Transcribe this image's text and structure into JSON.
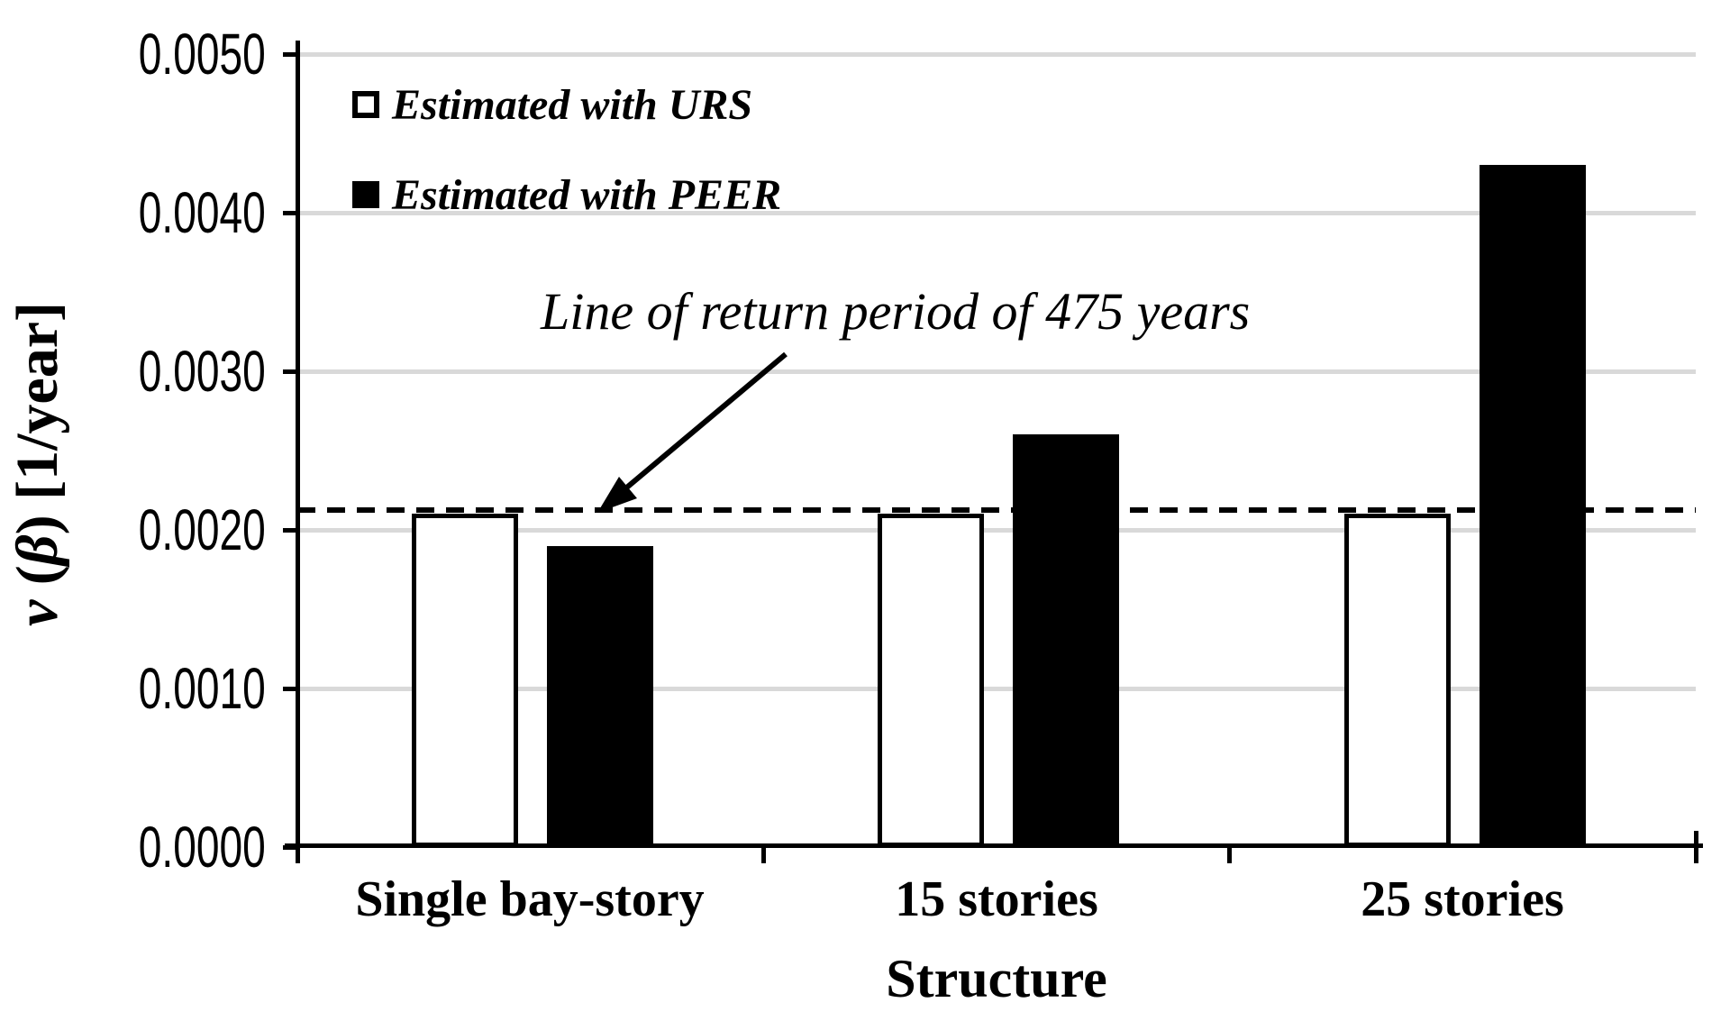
{
  "chart_data": {
    "type": "bar",
    "title": "",
    "xlabel": "Structure",
    "ylabel": "ν (β) [1/year]",
    "ylabel_parts": {
      "nu": "ν",
      "mid": " (",
      "beta": "β",
      "end": ") [1/year]"
    },
    "categories": [
      "Single bay-story",
      "15 stories",
      "25 stories"
    ],
    "series": [
      {
        "name": "Estimated with URS",
        "fill": "#ffffff",
        "outline": "#000000",
        "values": [
          0.0021,
          0.0021,
          0.0021
        ]
      },
      {
        "name": "Estimated with PEER",
        "fill": "#000000",
        "outline": "#000000",
        "values": [
          0.0019,
          0.0026,
          0.0043
        ]
      }
    ],
    "ylim": [
      0.0,
      0.005
    ],
    "ytick_step": 0.001,
    "ytick_labels": [
      "0.0000",
      "0.0010",
      "0.0020",
      "0.0030",
      "0.0040",
      "0.0050"
    ],
    "grid": true,
    "gridline_color": "#d9d9d9",
    "axis_color": "#000000",
    "legend_position": "top-left-inside",
    "reference_line": {
      "value": 0.0021,
      "style": "dashed",
      "color": "#000000"
    },
    "annotation": {
      "text": "Line of return period of 475 years",
      "points_to_value": 0.0021
    }
  }
}
